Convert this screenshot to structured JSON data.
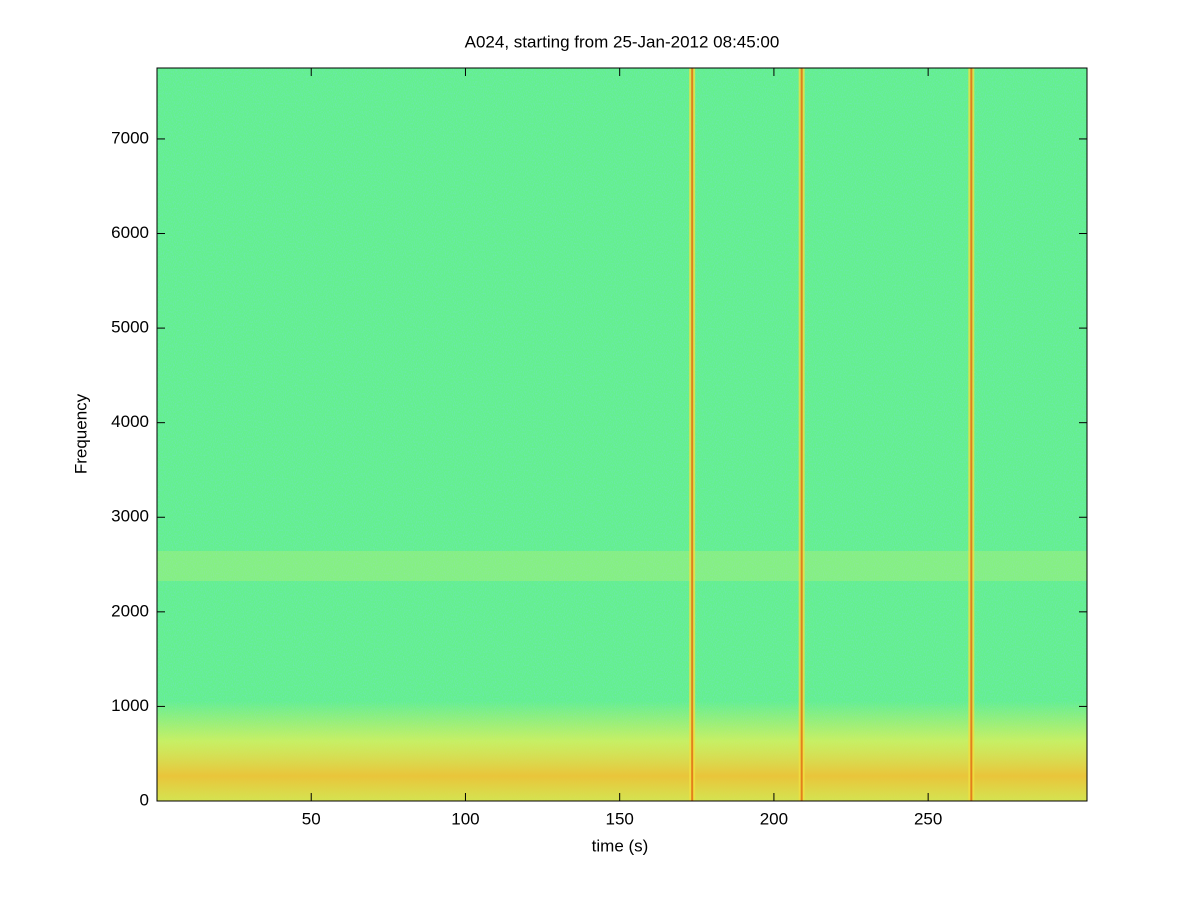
{
  "chart_data": {
    "type": "spectrogram",
    "title": "A024, starting from 25-Jan-2012 08:45:00",
    "x_label": "time (s)",
    "y_label": "Frequency",
    "xlim": [
      0,
      301.5
    ],
    "ylim": [
      0,
      7750
    ],
    "xticks": [
      50,
      100,
      150,
      200,
      250
    ],
    "yticks": [
      0,
      1000,
      2000,
      3000,
      4000,
      5000,
      6000,
      7000
    ],
    "events": [
      173.5,
      209,
      264
    ],
    "color": "#64f08c",
    "event_color": "#e06010"
  }
}
